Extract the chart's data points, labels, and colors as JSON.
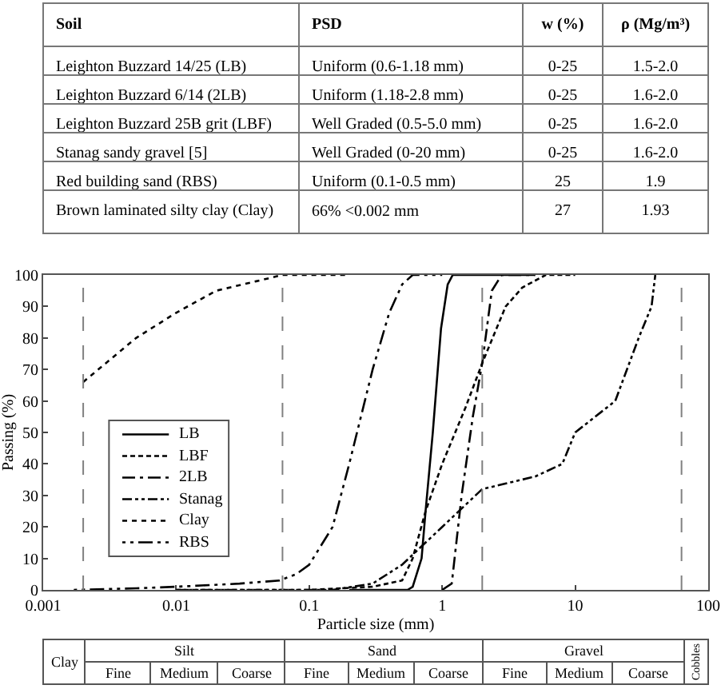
{
  "chart_data": [
    {
      "type": "other",
      "categories": [
        "Soil",
        "PSD",
        "w (%)",
        "ρ (Mg/m³)"
      ],
      "cell_labels": [
        [
          "Leighton Buzzard 14/25 (LB)",
          "Uniform (0.6-1.18 mm)",
          "0-25",
          "1.5-2.0"
        ],
        [
          "Leighton Buzzard 6/14 (2LB)",
          "Uniform (1.18-2.8 mm)",
          "0-25",
          "1.6-2.0"
        ],
        [
          "Leighton Buzzard 25B grit (LBF)",
          "Well Graded (0.5-5.0 mm)",
          "0-25",
          "1.6-2.0"
        ],
        [
          "Stanag sandy gravel [5]",
          "Well Graded (0-20 mm)",
          "0-25",
          "1.6-2.0"
        ],
        [
          "Red building sand (RBS)",
          "Uniform (0.1-0.5 mm)",
          "25",
          "1.9"
        ],
        [
          "Brown laminated silty clay (Clay)",
          "66% <0.002 mm",
          "27",
          "1.93"
        ]
      ]
    },
    {
      "type": "line",
      "xlabel": "Particle size (mm)",
      "ylabel": "Passing (%)",
      "log": "x",
      "xlim": [
        0.001,
        100
      ],
      "xticks": [
        0.001,
        0.01,
        0.1,
        1,
        10,
        100
      ],
      "ylim": [
        0,
        100
      ],
      "yticks": [
        0,
        10,
        20,
        30,
        40,
        50,
        60,
        70,
        80,
        90,
        100
      ],
      "legend": "left",
      "marker": "none",
      "series": [
        {
          "name": "LB",
          "color": "#000000",
          "line_style": "solid",
          "x": [
            0.2,
            0.55,
            0.6,
            0.7,
            0.75,
            0.85,
            0.98,
            1.1,
            1.2,
            2,
            5
          ],
          "values": [
            0,
            0,
            1,
            10,
            25,
            50,
            83,
            97,
            100,
            100,
            100
          ]
        },
        {
          "name": "LBF",
          "color": "#000000",
          "line_style": "dashed",
          "x": [
            0.01,
            0.1,
            0.3,
            0.5,
            0.6,
            0.75,
            1,
            1.5,
            2,
            3,
            4,
            6,
            10
          ],
          "values": [
            0,
            0,
            1,
            3,
            10,
            25,
            40,
            58,
            72,
            90,
            96,
            100,
            100
          ]
        },
        {
          "name": "2LB",
          "color": "#000000",
          "line_style": "dashed",
          "x": [
            1,
            1.18,
            1.4,
            1.7,
            2,
            2.36,
            2.8,
            5
          ],
          "values": [
            0,
            2,
            30,
            55,
            72,
            95,
            100,
            100
          ]
        },
        {
          "name": "Stanag",
          "color": "#000000",
          "line_style": "dashed",
          "x": [
            0.01,
            0.15,
            0.3,
            0.5,
            1,
            2,
            5,
            8,
            10,
            20,
            30,
            37.5,
            40
          ],
          "values": [
            0,
            0,
            2,
            8,
            20,
            32,
            36,
            40,
            50,
            60,
            80,
            90,
            100
          ]
        },
        {
          "name": "Clay",
          "color": "#000000",
          "line_style": "dotted",
          "x": [
            0.002,
            0.005,
            0.01,
            0.02,
            0.04,
            0.063,
            0.2
          ],
          "values": [
            66,
            80,
            88,
            95,
            98,
            100,
            100
          ]
        },
        {
          "name": "RBS",
          "color": "#000000",
          "line_style": "dashed",
          "x": [
            0.0017,
            0.005,
            0.01,
            0.03,
            0.06,
            0.08,
            0.1,
            0.15,
            0.2,
            0.3,
            0.4,
            0.5,
            0.6,
            1
          ],
          "values": [
            0,
            0.5,
            1,
            2,
            3,
            5,
            8,
            20,
            40,
            70,
            88,
            97,
            100,
            100
          ]
        }
      ],
      "ref_lines": [
        {
          "axis": "x",
          "value": 0.002,
          "color": "#808080",
          "line_style": "dashed"
        },
        {
          "axis": "x",
          "value": 0.063,
          "color": "#808080",
          "line_style": "dashed"
        },
        {
          "axis": "x",
          "value": 2,
          "color": "#808080",
          "line_style": "dashed"
        },
        {
          "axis": "x",
          "value": 63,
          "color": "#808080",
          "line_style": "dashed"
        }
      ]
    },
    {
      "type": "other",
      "annotations": [
        "Clay",
        "Silt",
        "Sand",
        "Gravel",
        "Cobbles",
        "Fine",
        "Medium",
        "Coarse",
        "Fine",
        "Medium",
        "Coarse",
        "Fine",
        "Medium",
        "Coarse"
      ]
    }
  ]
}
